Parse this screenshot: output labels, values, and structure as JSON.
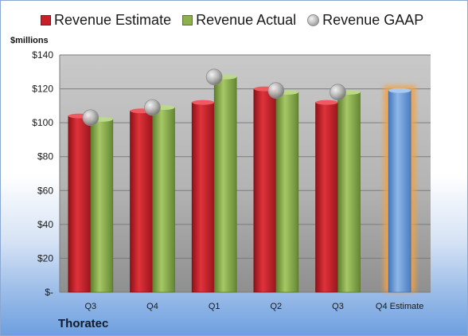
{
  "legend": {
    "estimate": "Revenue Estimate",
    "actual": "Revenue Actual",
    "gaap": "Revenue GAAP"
  },
  "unit_label": "$millions",
  "company": "Thoratec",
  "colors": {
    "estimate": "#c8202a",
    "actual": "#8cb04a",
    "gaap": "#b8b8b8",
    "forecast": "#6f9fd8",
    "forecast_glow": "#f4a040"
  },
  "chart_data": {
    "type": "bar",
    "title": "",
    "xlabel": "",
    "ylabel": "$millions",
    "ylim": [
      0,
      140
    ],
    "yticks": [
      0,
      20,
      40,
      60,
      80,
      100,
      120,
      140
    ],
    "ytick_labels": [
      "$-",
      "$20",
      "$40",
      "$60",
      "$80",
      "$100",
      "$120",
      "$140"
    ],
    "grid": true,
    "legend_position": "top",
    "categories": [
      "Q3",
      "Q4",
      "Q1",
      "Q2",
      "Q3",
      "Q4 Estimate"
    ],
    "series": [
      {
        "name": "Revenue Estimate",
        "type": "bar",
        "values": [
          104,
          107,
          112,
          120,
          112,
          null
        ]
      },
      {
        "name": "Revenue Actual",
        "type": "bar",
        "values": [
          102,
          109,
          127,
          118,
          118,
          119
        ]
      },
      {
        "name": "Revenue GAAP",
        "type": "scatter",
        "values": [
          103,
          109,
          127,
          119,
          118,
          null
        ]
      }
    ]
  }
}
